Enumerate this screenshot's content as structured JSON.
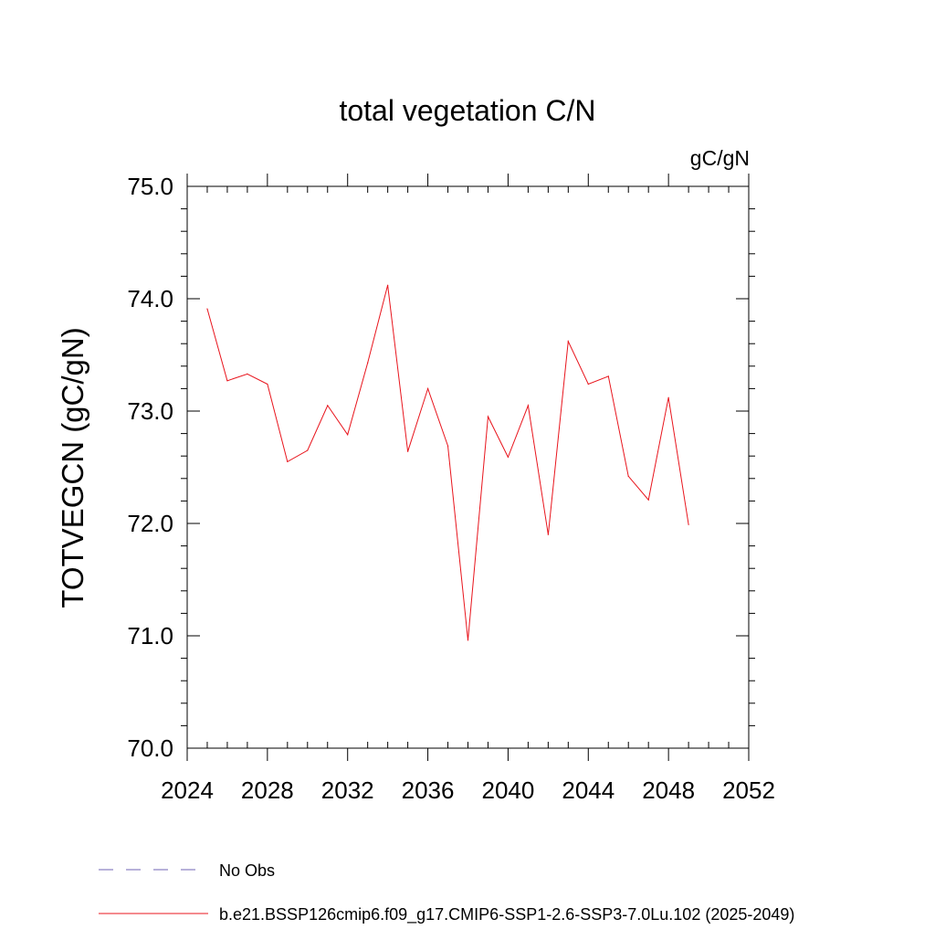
{
  "chart_data": {
    "type": "line",
    "title": "total vegetation C/N",
    "units_label": "gC/gN",
    "ylabel": "TOTVEGCN  (gC/gN)",
    "xlabel": "",
    "xlim": [
      2024,
      2052
    ],
    "ylim": [
      70.0,
      75.0
    ],
    "x_ticks": [
      2024,
      2028,
      2032,
      2036,
      2040,
      2044,
      2048,
      2052
    ],
    "x_tick_labels": [
      "2024",
      "2028",
      "2032",
      "2036",
      "2040",
      "2044",
      "2048",
      "2052"
    ],
    "y_ticks": [
      70.0,
      71.0,
      72.0,
      73.0,
      74.0,
      75.0
    ],
    "y_tick_labels": [
      "70.0",
      "71.0",
      "72.0",
      "73.0",
      "74.0",
      "75.0"
    ],
    "x_minor_step": 1,
    "y_minor_step": 0.2,
    "grid": false,
    "series": [
      {
        "name": "b.e21.BSSP126cmip6.f09_g17.CMIP6-SSP1-2.6-SSP3-7.0Lu.102 (2025-2049)",
        "color": "#e8141c",
        "style": "solid",
        "x": [
          2025,
          2026,
          2027,
          2028,
          2029,
          2030,
          2031,
          2032,
          2033,
          2034,
          2035,
          2036,
          2037,
          2038,
          2039,
          2040,
          2041,
          2042,
          2043,
          2044,
          2045,
          2046,
          2047,
          2048,
          2049
        ],
        "values": [
          73.91,
          73.27,
          73.33,
          73.24,
          72.55,
          72.65,
          73.05,
          72.79,
          73.43,
          74.12,
          72.64,
          73.2,
          72.69,
          70.96,
          72.95,
          72.59,
          73.05,
          71.9,
          73.62,
          73.24,
          73.31,
          72.42,
          72.21,
          73.12,
          71.99
        ]
      }
    ],
    "legend": {
      "placement": "bottom-left",
      "items": [
        {
          "label": "No Obs",
          "color": "#6f63b6",
          "style": "dashed"
        },
        {
          "label": "b.e21.BSSP126cmip6.f09_g17.CMIP6-SSP1-2.6-SSP3-7.0Lu.102 (2025-2049)",
          "color": "#e8141c",
          "style": "solid"
        }
      ]
    }
  }
}
